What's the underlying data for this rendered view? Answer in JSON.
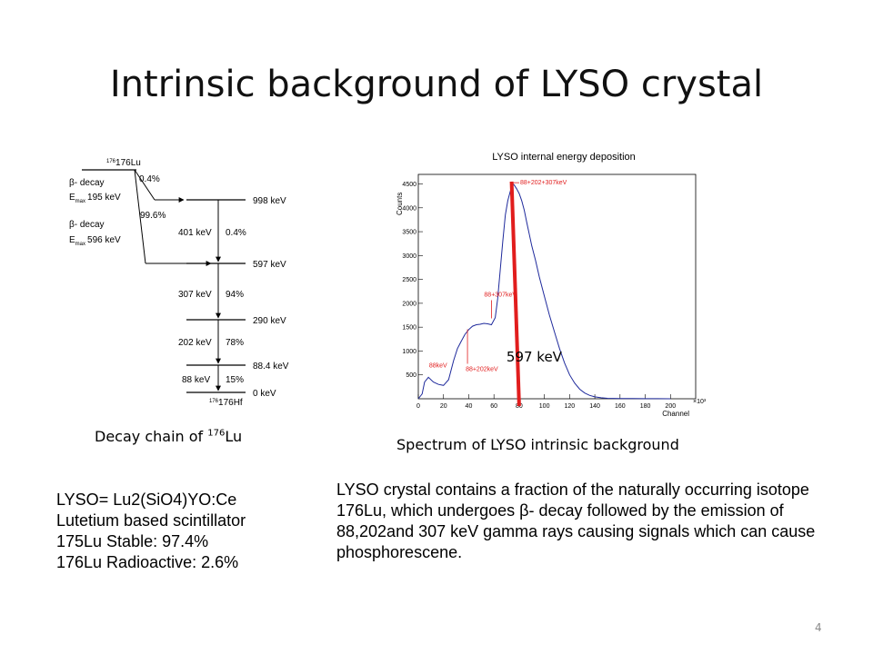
{
  "slide": {
    "title": "Intrinsic background of LYSO crystal",
    "page_number": "4"
  },
  "decay_scheme": {
    "parent": "176Lu",
    "daughter": "176Hf",
    "branches": [
      {
        "type": "β- decay",
        "emax": "195 keV",
        "fraction": "99.6%"
      },
      {
        "type": "β- decay",
        "emax": "596 keV",
        "fraction": "0.4%"
      }
    ],
    "emax_sub": "max",
    "levels": [
      "998 keV",
      "597 keV",
      "290 keV",
      "88.4 keV",
      "0 keV"
    ],
    "transitions": [
      {
        "energy": "401 keV",
        "intensity": "0.4%"
      },
      {
        "energy": "307 keV",
        "intensity": "94%"
      },
      {
        "energy": "202 keV",
        "intensity": "78%"
      },
      {
        "energy": "88 keV",
        "intensity": "15%"
      }
    ]
  },
  "decay_caption": {
    "text": "Decay chain of ",
    "sup": "176",
    "tail": "Lu"
  },
  "spectrum_caption": "Spectrum of LYSO intrinsic background",
  "facts": [
    "LYSO= Lu2(SiO4)YO:Ce",
    "Lutetium based scintillator",
    "175Lu Stable: 97.4%",
    "176Lu Radioactive: 2.6%"
  ],
  "description": "LYSO crystal contains a fraction of the naturally occurring isotope 176Lu, which undergoes β- decay followed by the emission of 88,202and 307 keV gamma rays causing signals which can cause phosphorescene.",
  "chart_data": {
    "type": "line",
    "title": "LYSO internal energy deposition",
    "xlabel": "Channel",
    "ylabel": "Counts",
    "x_multiplier": "×10³",
    "xlim": [
      0,
      220
    ],
    "ylim": [
      0,
      4700
    ],
    "xticks": [
      0,
      20,
      40,
      60,
      80,
      100,
      120,
      140,
      160,
      180,
      200
    ],
    "yticks": [
      500,
      1000,
      1500,
      2000,
      2500,
      3000,
      3500,
      4000,
      4500
    ],
    "series": [
      {
        "line_color": "#1f2a9c",
        "x": [
          0,
          3,
          5,
          8,
          12,
          16,
          20,
          24,
          28,
          31,
          34,
          37,
          40,
          43,
          46,
          49,
          52,
          55,
          58,
          61,
          63,
          65,
          67,
          69,
          71,
          73,
          75,
          76,
          78,
          80,
          82,
          84,
          86,
          88,
          90,
          93,
          96,
          100,
          104,
          108,
          112,
          116,
          120,
          124,
          128,
          132,
          136,
          140,
          145,
          150,
          160,
          170,
          180,
          190,
          200
        ],
        "y": [
          0,
          100,
          350,
          450,
          350,
          300,
          280,
          400,
          800,
          1050,
          1200,
          1350,
          1450,
          1520,
          1550,
          1560,
          1580,
          1570,
          1550,
          1700,
          2100,
          2700,
          3300,
          3850,
          4150,
          4350,
          4500,
          4480,
          4400,
          4300,
          4150,
          3950,
          3700,
          3450,
          3200,
          2900,
          2550,
          2150,
          1750,
          1400,
          1050,
          750,
          500,
          330,
          200,
          120,
          70,
          40,
          20,
          10,
          5,
          3,
          2,
          1,
          0
        ]
      }
    ],
    "annotations": [
      {
        "label": "88keV",
        "x": 10,
        "y": 500
      },
      {
        "label": "88+202keV",
        "x": 39,
        "y": 1000
      },
      {
        "label": "88+307keV",
        "x": 58,
        "y": 1950
      },
      {
        "label": "88+202+307keV",
        "x": 75,
        "y": 4450
      },
      {
        "label": "597 keV",
        "x": 80,
        "y": 700
      }
    ],
    "marker_line": {
      "x_start": 80,
      "x_end": 74,
      "y_top": 4550,
      "color": "#e11d1d"
    }
  }
}
